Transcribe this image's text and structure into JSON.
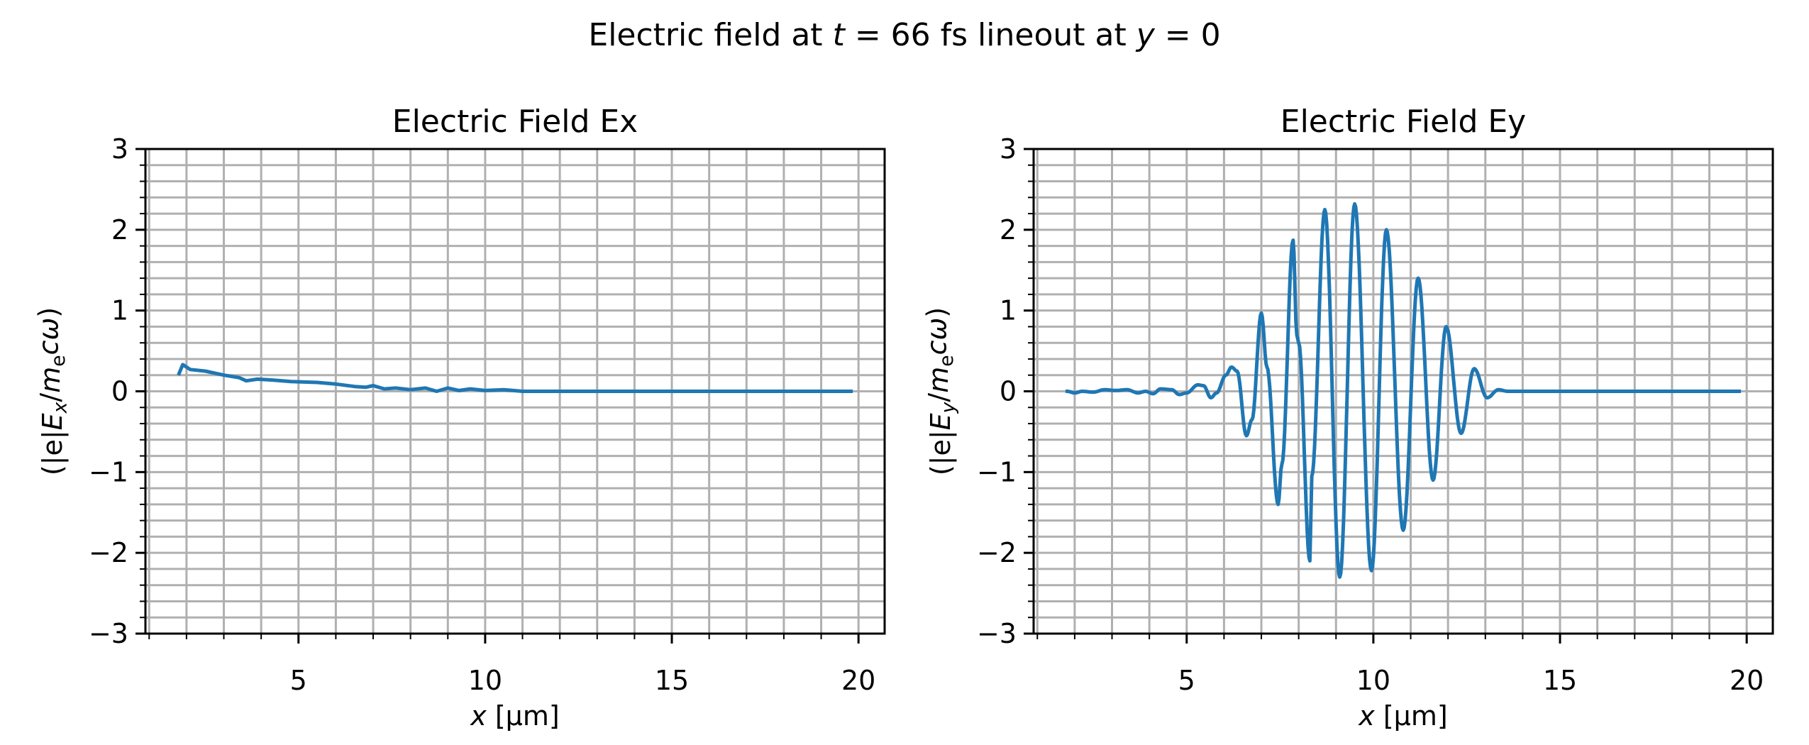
{
  "chart_data": {
    "title_parts": [
      {
        "t": "Electric field at "
      },
      {
        "t": "t",
        "i": true
      },
      {
        "t": " = 66 fs lineout at "
      },
      {
        "t": "y",
        "i": true
      },
      {
        "t": " = 0"
      }
    ],
    "line_color": "#1f77b4",
    "grid": true,
    "grid_color": "#b0b0b0",
    "panels": [
      {
        "type": "line",
        "title": "Electric Field Ex",
        "xlabel_parts": [
          {
            "t": "x",
            "i": true
          },
          {
            "t": " [µm]"
          }
        ],
        "ylabel_parts": [
          {
            "t": "(|e|"
          },
          {
            "t": "E",
            "i": true
          },
          {
            "t": "x",
            "i": true,
            "sub": true
          },
          {
            "t": "/"
          },
          {
            "t": "m",
            "i": true
          },
          {
            "t": "e",
            "sub": true
          },
          {
            "t": "cω",
            "i": true
          },
          {
            "t": ")"
          }
        ],
        "xlim": [
          0.9,
          20.7
        ],
        "ylim": [
          -3,
          3
        ],
        "xticks": [
          5,
          10,
          15,
          20
        ],
        "yticks": [
          -3,
          -2,
          -1,
          0,
          1,
          2,
          3
        ],
        "ytick_labels": [
          "−3",
          "−2",
          "−1",
          "0",
          "1",
          "2",
          "3"
        ],
        "x": [
          1.8,
          1.9,
          2.1,
          2.5,
          3.0,
          3.4,
          3.6,
          3.9,
          4.3,
          4.8,
          5.5,
          6.0,
          6.5,
          6.8,
          7.0,
          7.3,
          7.6,
          8.0,
          8.4,
          8.7,
          9.0,
          9.3,
          9.6,
          10.0,
          10.5,
          11.0,
          12.0,
          19.8
        ],
        "y": [
          0.22,
          0.33,
          0.27,
          0.25,
          0.2,
          0.17,
          0.13,
          0.15,
          0.14,
          0.12,
          0.11,
          0.09,
          0.06,
          0.05,
          0.07,
          0.03,
          0.04,
          0.02,
          0.04,
          0.0,
          0.04,
          0.01,
          0.03,
          0.01,
          0.02,
          0.0,
          0.0,
          0.0
        ]
      },
      {
        "type": "line",
        "title": "Electric Field Ey",
        "xlabel_parts": [
          {
            "t": "x",
            "i": true
          },
          {
            "t": " [µm]"
          }
        ],
        "ylabel_parts": [
          {
            "t": "(|e|"
          },
          {
            "t": "E",
            "i": true
          },
          {
            "t": "y",
            "i": true,
            "sub": true
          },
          {
            "t": "/"
          },
          {
            "t": "m",
            "i": true
          },
          {
            "t": "e",
            "sub": true
          },
          {
            "t": "cω",
            "i": true
          },
          {
            "t": ")"
          }
        ],
        "xlim": [
          0.9,
          20.7
        ],
        "ylim": [
          -3,
          3
        ],
        "xticks": [
          5,
          10,
          15,
          20
        ],
        "yticks": [
          -3,
          -2,
          -1,
          0,
          1,
          2,
          3
        ],
        "ytick_labels": [
          "−3",
          "−2",
          "−1",
          "0",
          "1",
          "2",
          "3"
        ],
        "x": [
          1.8,
          2.0,
          2.2,
          2.5,
          2.8,
          3.1,
          3.4,
          3.7,
          3.9,
          4.1,
          4.3,
          4.6,
          4.8,
          5.0,
          5.3,
          5.45,
          5.65,
          5.8,
          6.05,
          6.2,
          6.35,
          6.6,
          6.75,
          7.0,
          7.15,
          7.45,
          7.55,
          7.85,
          7.95,
          8.0,
          8.3,
          8.35,
          8.7,
          9.1,
          9.5,
          9.95,
          10.35,
          10.8,
          11.2,
          11.6,
          11.95,
          12.35,
          12.7,
          13.05,
          13.35,
          13.6,
          19.8
        ],
        "y": [
          0.0,
          -0.02,
          0.0,
          -0.01,
          0.02,
          0.01,
          0.02,
          -0.02,
          0.0,
          -0.03,
          0.03,
          0.02,
          -0.04,
          -0.02,
          0.08,
          0.07,
          -0.08,
          -0.02,
          0.2,
          0.3,
          0.25,
          -0.55,
          -0.35,
          0.97,
          0.3,
          -1.4,
          -0.9,
          1.87,
          0.7,
          0.6,
          -2.1,
          -1.05,
          2.25,
          -2.3,
          2.32,
          -2.22,
          2.0,
          -1.72,
          1.4,
          -1.1,
          0.8,
          -0.52,
          0.28,
          -0.08,
          0.02,
          0.0,
          0.0
        ]
      }
    ]
  }
}
